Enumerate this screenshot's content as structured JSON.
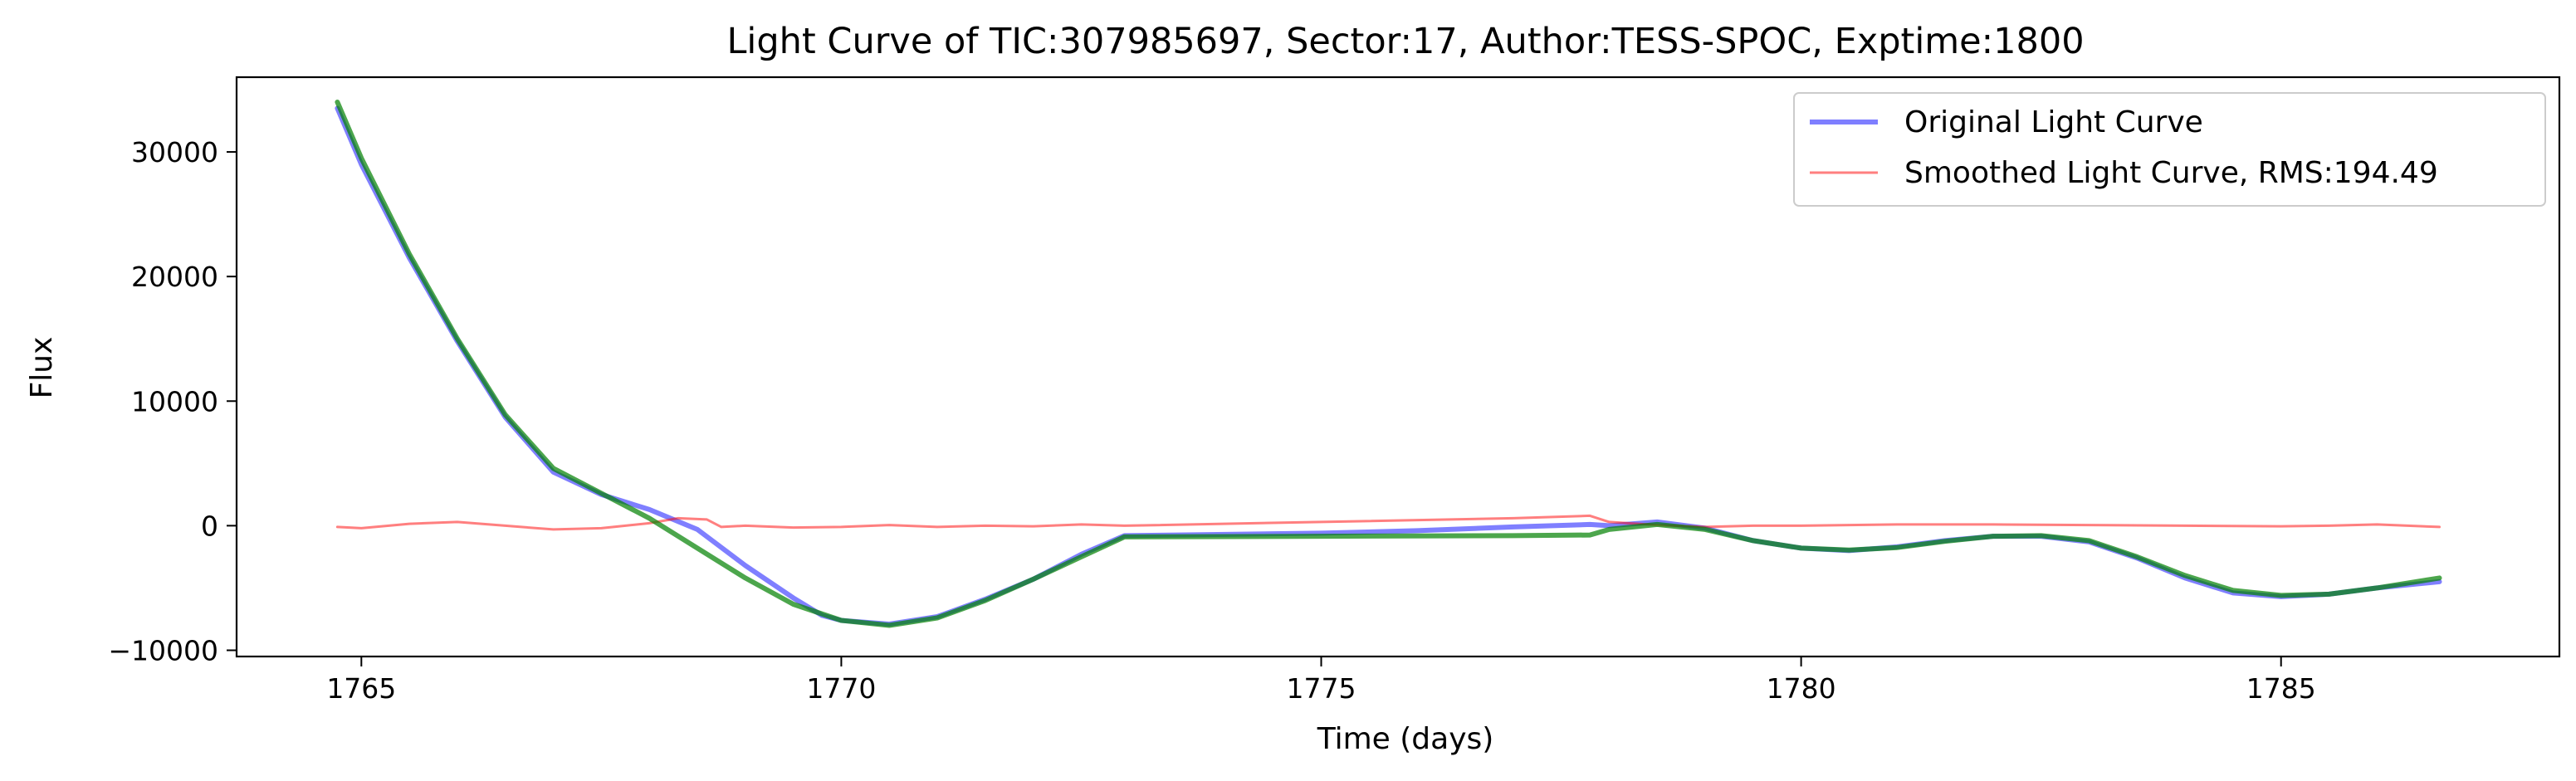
{
  "chart_data": {
    "type": "line",
    "title": "Light Curve of TIC:307985697, Sector:17, Author:TESS-SPOC, Exptime:1800",
    "xlabel": "Time (days)",
    "ylabel": "Flux",
    "xlim": [
      1763.7,
      1787.9
    ],
    "ylim": [
      -10500,
      36000
    ],
    "xticks": [
      1765,
      1770,
      1775,
      1780,
      1785
    ],
    "yticks": [
      -10000,
      0,
      10000,
      20000,
      30000
    ],
    "xtick_labels": [
      "1765",
      "1770",
      "1775",
      "1780",
      "1785"
    ],
    "ytick_labels": [
      "−10000",
      "0",
      "10000",
      "20000",
      "30000"
    ],
    "grid": false,
    "legend_position": "top-right",
    "series": [
      {
        "name": "Original Light Curve",
        "color": "#0000ff",
        "opacity": 0.5,
        "x": [
          1764.75,
          1765.0,
          1765.5,
          1766.0,
          1766.5,
          1767.0,
          1767.5,
          1768.0,
          1768.5,
          1769.0,
          1769.5,
          1769.8,
          1770.0,
          1770.5,
          1771.0,
          1771.5,
          1772.0,
          1772.5,
          1772.95,
          1773.5,
          1775.0,
          1776.0,
          1777.0,
          1777.8,
          1778.0,
          1778.5,
          1779.0,
          1779.5,
          1780.0,
          1780.5,
          1781.0,
          1781.5,
          1782.0,
          1782.5,
          1783.0,
          1783.5,
          1784.0,
          1784.5,
          1785.0,
          1785.5,
          1786.0,
          1786.65
        ],
        "y": [
          33500,
          29000,
          21500,
          14800,
          8700,
          4300,
          2500,
          1300,
          -300,
          -3200,
          -5800,
          -7200,
          -7600,
          -7900,
          -7300,
          -5900,
          -4300,
          -2300,
          -800,
          -750,
          -600,
          -400,
          -100,
          100,
          0,
          300,
          -200,
          -1200,
          -1800,
          -2000,
          -1700,
          -1200,
          -850,
          -850,
          -1300,
          -2600,
          -4200,
          -5400,
          -5700,
          -5500,
          -5000,
          -4500
        ]
      },
      {
        "name": "Smoothed Light Curve, RMS:194.49",
        "color": "#ff0000",
        "opacity": 0.5,
        "x": [
          1764.75,
          1765.0,
          1765.5,
          1766.0,
          1766.5,
          1767.0,
          1767.5,
          1768.0,
          1768.3,
          1768.6,
          1768.75,
          1769.0,
          1769.5,
          1770.0,
          1770.5,
          1771.0,
          1771.5,
          1772.0,
          1772.5,
          1772.95,
          1775.0,
          1777.0,
          1777.8,
          1778.0,
          1778.5,
          1779.0,
          1779.5,
          1780.0,
          1781.0,
          1782.0,
          1783.0,
          1784.0,
          1785.0,
          1785.5,
          1786.0,
          1786.65
        ],
        "y": [
          -100,
          -200,
          150,
          300,
          0,
          -300,
          -200,
          200,
          600,
          500,
          -100,
          0,
          -150,
          -100,
          50,
          -100,
          0,
          -50,
          100,
          0,
          300,
          600,
          800,
          300,
          50,
          -100,
          0,
          0,
          100,
          100,
          50,
          0,
          -50,
          0,
          100,
          -100
        ]
      },
      {
        "name": "",
        "color": "#008000",
        "opacity": 0.7,
        "x": [
          1764.75,
          1765.0,
          1765.5,
          1766.0,
          1766.5,
          1767.0,
          1767.5,
          1768.0,
          1768.5,
          1769.0,
          1769.5,
          1770.0,
          1770.5,
          1771.0,
          1771.5,
          1772.0,
          1772.5,
          1772.95,
          1775.0,
          1777.0,
          1777.8,
          1778.0,
          1778.5,
          1779.0,
          1779.5,
          1780.0,
          1780.5,
          1781.0,
          1781.5,
          1782.0,
          1782.5,
          1783.0,
          1783.5,
          1784.0,
          1784.5,
          1785.0,
          1785.5,
          1786.0,
          1786.65
        ],
        "y": [
          34000,
          29500,
          21800,
          15000,
          8900,
          4600,
          2600,
          600,
          -1800,
          -4200,
          -6300,
          -7600,
          -8000,
          -7400,
          -6000,
          -4300,
          -2500,
          -900,
          -850,
          -800,
          -750,
          -300,
          100,
          -300,
          -1200,
          -1800,
          -1950,
          -1750,
          -1250,
          -850,
          -800,
          -1200,
          -2500,
          -4000,
          -5200,
          -5600,
          -5500,
          -5000,
          -4200
        ]
      }
    ]
  }
}
